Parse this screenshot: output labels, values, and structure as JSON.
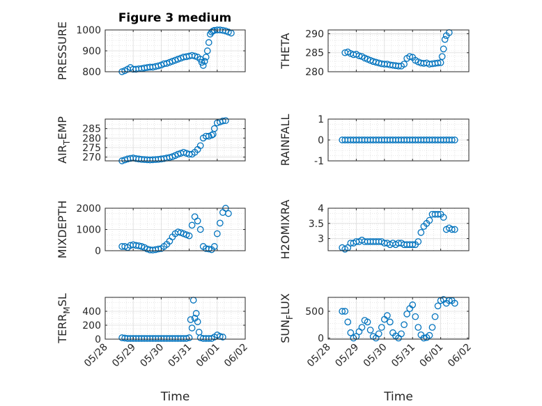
{
  "figure_title": "Figure 3 medium",
  "marker_color": "#0072BD",
  "chart_data": [
    {
      "type": "scatter",
      "ylabel": "PRESSURE",
      "ylabel_sub": "",
      "ylabel_tail": "",
      "ylim": [
        800,
        1000
      ],
      "yticks": [
        "800",
        "900",
        "1000"
      ],
      "ytick_values": [
        800,
        900,
        1000
      ],
      "xlim": [
        0,
        5
      ],
      "xlabel": "",
      "x": [
        0.6,
        0.7,
        0.8,
        0.9,
        1.0,
        1.1,
        1.2,
        1.3,
        1.4,
        1.5,
        1.6,
        1.7,
        1.8,
        1.9,
        2.0,
        2.1,
        2.2,
        2.3,
        2.4,
        2.5,
        2.6,
        2.7,
        2.8,
        2.9,
        3.0,
        3.1,
        3.2,
        3.3,
        3.4,
        3.45,
        3.5,
        3.55,
        3.6,
        3.65,
        3.7,
        3.75,
        3.8,
        3.85,
        3.9,
        4.0,
        4.1,
        4.2,
        4.3,
        4.4,
        4.5
      ],
      "y": [
        800,
        805,
        812,
        820,
        812,
        812,
        814,
        815,
        818,
        820,
        822,
        822,
        825,
        828,
        832,
        838,
        840,
        845,
        850,
        855,
        860,
        865,
        870,
        872,
        875,
        878,
        875,
        870,
        860,
        845,
        830,
        850,
        870,
        900,
        940,
        980,
        990,
        995,
        998,
        1000,
        1000,
        998,
        995,
        990,
        985
      ]
    },
    {
      "type": "scatter",
      "ylabel": "THETA",
      "ylabel_sub": "",
      "ylabel_tail": "",
      "ylim": [
        280,
        291
      ],
      "yticks": [
        "280",
        "285",
        "290"
      ],
      "ytick_values": [
        280,
        285,
        290
      ],
      "xlim": [
        0,
        5
      ],
      "xlabel": "",
      "x": [
        0.6,
        0.7,
        0.8,
        0.9,
        1.0,
        1.1,
        1.2,
        1.3,
        1.4,
        1.5,
        1.6,
        1.7,
        1.8,
        1.9,
        2.0,
        2.1,
        2.2,
        2.3,
        2.4,
        2.5,
        2.6,
        2.7,
        2.8,
        2.9,
        3.0,
        3.1,
        3.2,
        3.3,
        3.4,
        3.5,
        3.6,
        3.7,
        3.8,
        3.9,
        4.0,
        4.05,
        4.1,
        4.15,
        4.2,
        4.3
      ],
      "y": [
        285,
        285.2,
        284.8,
        284.5,
        284.6,
        284.2,
        284.0,
        283.6,
        283.3,
        283.0,
        282.7,
        282.5,
        282.3,
        282.1,
        282.0,
        282.0,
        281.8,
        281.7,
        281.6,
        281.5,
        281.5,
        282.0,
        283.5,
        284.0,
        283.8,
        283.0,
        282.6,
        282.3,
        282.2,
        282.3,
        282.0,
        282.1,
        282.2,
        282.3,
        282.4,
        284.0,
        286.0,
        288.5,
        289.5,
        290.3
      ]
    },
    {
      "type": "scatter",
      "ylabel": "AIR",
      "ylabel_sub": "T",
      "ylabel_tail": "EMP",
      "ylim": [
        268,
        290
      ],
      "yticks": [
        "270",
        "275",
        "280",
        "285"
      ],
      "ytick_values": [
        270,
        275,
        280,
        285
      ],
      "xlim": [
        0,
        5
      ],
      "xlabel": "",
      "x": [
        0.6,
        0.7,
        0.8,
        0.9,
        1.0,
        1.1,
        1.2,
        1.3,
        1.4,
        1.5,
        1.6,
        1.7,
        1.8,
        1.9,
        2.0,
        2.1,
        2.2,
        2.3,
        2.4,
        2.5,
        2.6,
        2.7,
        2.8,
        2.9,
        3.0,
        3.1,
        3.2,
        3.3,
        3.4,
        3.5,
        3.6,
        3.7,
        3.8,
        3.85,
        3.9,
        4.0,
        4.1,
        4.2,
        4.3
      ],
      "y": [
        268,
        268.5,
        269,
        269.3,
        269.5,
        269.2,
        269.0,
        268.8,
        268.7,
        268.6,
        268.5,
        268.6,
        268.7,
        268.8,
        269.0,
        269.2,
        269.5,
        269.8,
        270.2,
        270.8,
        271.5,
        272,
        272.5,
        272,
        271.5,
        271.5,
        272.5,
        274,
        276,
        280,
        281,
        281,
        281.5,
        282,
        285,
        288,
        288.5,
        289,
        289.2
      ]
    },
    {
      "type": "scatter",
      "ylabel": "RAINFALL",
      "ylabel_sub": "",
      "ylabel_tail": "",
      "ylim": [
        -1,
        1
      ],
      "yticks": [
        "-1",
        "0",
        "1"
      ],
      "ytick_values": [
        -1,
        0,
        1
      ],
      "xlim": [
        0,
        5
      ],
      "xlabel": "",
      "x": [
        0.5,
        0.6,
        0.7,
        0.8,
        0.9,
        1.0,
        1.1,
        1.2,
        1.3,
        1.4,
        1.5,
        1.6,
        1.7,
        1.8,
        1.9,
        2.0,
        2.1,
        2.2,
        2.3,
        2.4,
        2.5,
        2.6,
        2.7,
        2.8,
        2.9,
        3.0,
        3.1,
        3.2,
        3.3,
        3.4,
        3.5,
        3.6,
        3.7,
        3.8,
        3.9,
        4.0,
        4.1,
        4.2,
        4.3,
        4.4,
        4.5
      ],
      "y": [
        0,
        0,
        0,
        0,
        0,
        0,
        0,
        0,
        0,
        0,
        0,
        0,
        0,
        0,
        0,
        0,
        0,
        0,
        0,
        0,
        0,
        0,
        0,
        0,
        0,
        0,
        0,
        0,
        0,
        0,
        0,
        0,
        0,
        0,
        0,
        0,
        0,
        0,
        0,
        0,
        0
      ]
    },
    {
      "type": "scatter",
      "ylabel": "MIXDEPTH",
      "ylabel_sub": "",
      "ylabel_tail": "",
      "ylim": [
        0,
        2000
      ],
      "yticks": [
        "0",
        "1000",
        "2000"
      ],
      "ytick_values": [
        0,
        1000,
        2000
      ],
      "xlim": [
        0,
        5
      ],
      "xlabel": "",
      "x": [
        0.6,
        0.7,
        0.8,
        0.9,
        1.0,
        1.1,
        1.2,
        1.3,
        1.4,
        1.5,
        1.6,
        1.7,
        1.8,
        1.9,
        2.0,
        2.1,
        2.2,
        2.3,
        2.4,
        2.5,
        2.6,
        2.7,
        2.8,
        2.9,
        3.0,
        3.1,
        3.2,
        3.3,
        3.4,
        3.5,
        3.6,
        3.7,
        3.8,
        3.9,
        4.0,
        4.1,
        4.2,
        4.3,
        4.4
      ],
      "y": [
        200,
        200,
        150,
        250,
        280,
        250,
        230,
        200,
        150,
        80,
        40,
        30,
        50,
        80,
        100,
        200,
        300,
        450,
        650,
        800,
        880,
        850,
        800,
        750,
        700,
        1200,
        1600,
        1400,
        1000,
        200,
        100,
        80,
        50,
        200,
        800,
        1300,
        1800,
        2000,
        1750
      ]
    },
    {
      "type": "scatter",
      "ylabel": "H2OMIXRA",
      "ylabel_sub": "",
      "ylabel_tail": "",
      "ylim": [
        2.6,
        4.0
      ],
      "yticks": [
        "3",
        "3.5",
        "4"
      ],
      "ytick_values": [
        3,
        3.5,
        4
      ],
      "xlim": [
        0,
        5
      ],
      "xlabel": "",
      "x": [
        0.5,
        0.6,
        0.7,
        0.8,
        0.9,
        1.0,
        1.1,
        1.2,
        1.3,
        1.4,
        1.5,
        1.6,
        1.7,
        1.8,
        1.9,
        2.0,
        2.1,
        2.2,
        2.3,
        2.4,
        2.5,
        2.6,
        2.7,
        2.8,
        2.9,
        3.0,
        3.1,
        3.2,
        3.3,
        3.4,
        3.5,
        3.6,
        3.7,
        3.8,
        3.9,
        4.0,
        4.1,
        4.2,
        4.3,
        4.4,
        4.5
      ],
      "y": [
        2.7,
        2.65,
        2.7,
        2.85,
        2.85,
        2.9,
        2.9,
        2.95,
        2.9,
        2.9,
        2.9,
        2.9,
        2.9,
        2.9,
        2.9,
        2.85,
        2.85,
        2.8,
        2.85,
        2.8,
        2.85,
        2.85,
        2.8,
        2.8,
        2.8,
        2.8,
        2.8,
        2.9,
        3.2,
        3.4,
        3.5,
        3.6,
        3.8,
        3.8,
        3.8,
        3.8,
        3.7,
        3.3,
        3.35,
        3.3,
        3.3
      ]
    },
    {
      "type": "scatter",
      "ylabel": "TERR",
      "ylabel_sub": "M",
      "ylabel_tail": "SL",
      "ylim": [
        0,
        600
      ],
      "yticks": [
        "0",
        "200",
        "400"
      ],
      "ytick_values": [
        0,
        200,
        400
      ],
      "xlim": [
        0,
        5
      ],
      "xlabel": "Time",
      "xticks": [
        "05/28",
        "05/29",
        "05/30",
        "05/31",
        "06/01",
        "06/02"
      ],
      "xtick_values": [
        0,
        1,
        2,
        3,
        4,
        5
      ],
      "x": [
        0.6,
        0.7,
        0.8,
        0.9,
        1.0,
        1.1,
        1.2,
        1.3,
        1.4,
        1.5,
        1.6,
        1.7,
        1.8,
        1.9,
        2.0,
        2.1,
        2.2,
        2.3,
        2.4,
        2.5,
        2.6,
        2.7,
        2.8,
        2.9,
        3.0,
        3.05,
        3.1,
        3.15,
        3.2,
        3.25,
        3.3,
        3.35,
        3.4,
        3.5,
        3.6,
        3.7,
        3.8,
        3.9,
        4.0,
        4.1,
        4.2
      ],
      "y": [
        20,
        15,
        10,
        10,
        10,
        10,
        10,
        10,
        10,
        10,
        10,
        10,
        10,
        10,
        10,
        10,
        10,
        10,
        10,
        10,
        10,
        10,
        10,
        10,
        20,
        280,
        160,
        560,
        300,
        370,
        250,
        100,
        20,
        10,
        10,
        10,
        10,
        30,
        60,
        40,
        30
      ]
    },
    {
      "type": "scatter",
      "ylabel": "SUN",
      "ylabel_sub": "F",
      "ylabel_tail": "LUX",
      "ylim": [
        -20,
        760
      ],
      "yticks": [
        "0",
        "500"
      ],
      "ytick_values": [
        0,
        500
      ],
      "xlim": [
        0,
        5
      ],
      "xlabel": "Time",
      "xticks": [
        "05/28",
        "05/29",
        "05/30",
        "05/31",
        "06/01",
        "06/02"
      ],
      "xtick_values": [
        0,
        1,
        2,
        3,
        4,
        5
      ],
      "x": [
        0.5,
        0.6,
        0.7,
        0.8,
        0.9,
        1.0,
        1.1,
        1.2,
        1.3,
        1.4,
        1.5,
        1.6,
        1.7,
        1.8,
        1.9,
        2.0,
        2.1,
        2.2,
        2.3,
        2.4,
        2.5,
        2.6,
        2.7,
        2.8,
        2.9,
        3.0,
        3.1,
        3.2,
        3.3,
        3.4,
        3.5,
        3.6,
        3.7,
        3.8,
        3.9,
        4.0,
        4.1,
        4.2,
        4.3,
        4.4,
        4.5
      ],
      "y": [
        500,
        500,
        300,
        100,
        0,
        30,
        120,
        200,
        330,
        300,
        150,
        30,
        0,
        80,
        200,
        350,
        420,
        300,
        100,
        40,
        0,
        80,
        250,
        450,
        550,
        620,
        400,
        200,
        60,
        0,
        10,
        50,
        200,
        400,
        600,
        700,
        720,
        650,
        700,
        700,
        650
      ]
    }
  ]
}
